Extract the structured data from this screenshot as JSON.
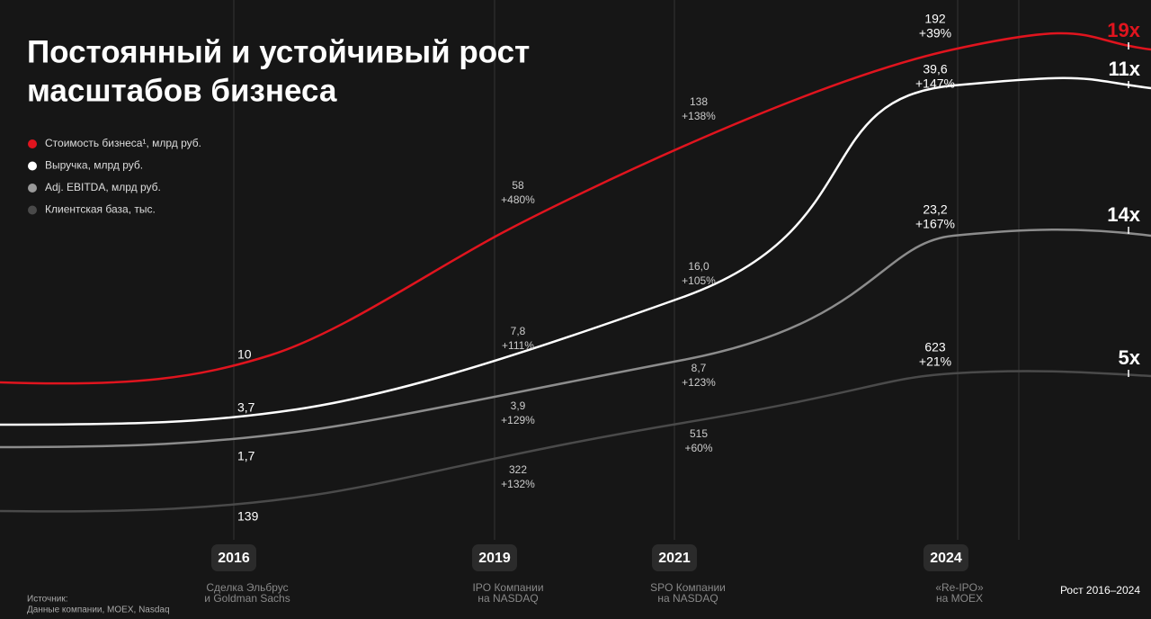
{
  "title": [
    "Постоянный и устойчивый рост",
    "масштабов бизнеса"
  ],
  "legend": [
    "Стоимость бизнеса¹, млрд руб.",
    "Выручка, млрд руб.",
    "Adj. EBITDA, млрд руб.",
    "Клиентская база, тыс."
  ],
  "milestones": [
    {
      "year": "2016",
      "caption": [
        "Сделка Эльбрус",
        "и Goldman Sachs"
      ],
      "labels": [
        [
          "10"
        ],
        [
          "3,7"
        ],
        [
          "1,7"
        ],
        [
          "139"
        ]
      ]
    },
    {
      "year": "2019",
      "caption": [
        "IPO Компании",
        "на NASDAQ"
      ],
      "labels": [
        [
          "58",
          "+480%"
        ],
        [
          "7,8",
          "+111%"
        ],
        [
          "3,9",
          "+129%"
        ],
        [
          "322",
          "+132%"
        ]
      ]
    },
    {
      "year": "2021",
      "caption": [
        "SPO Компании",
        "на NASDAQ"
      ],
      "labels": [
        [
          "138",
          "+138%"
        ],
        [
          "16,0",
          "+105%"
        ],
        [
          "8,7",
          "+123%"
        ],
        [
          "515",
          "+60%"
        ]
      ]
    },
    {
      "year": "2024",
      "caption": [
        "«Re-IPO»",
        "на MOEX"
      ],
      "labels": [
        [
          "192",
          "+39%"
        ],
        [
          "39,6",
          "+147%"
        ],
        [
          "23,2",
          "+167%"
        ],
        [
          "623",
          "+21%"
        ]
      ]
    }
  ],
  "growth": {
    "title": "Рост 2016–2024",
    "items": [
      "19x",
      "11x",
      "14x",
      "5x"
    ]
  },
  "source": [
    "Источник:",
    "Данные компании, MOEX, Nasdaq"
  ]
}
